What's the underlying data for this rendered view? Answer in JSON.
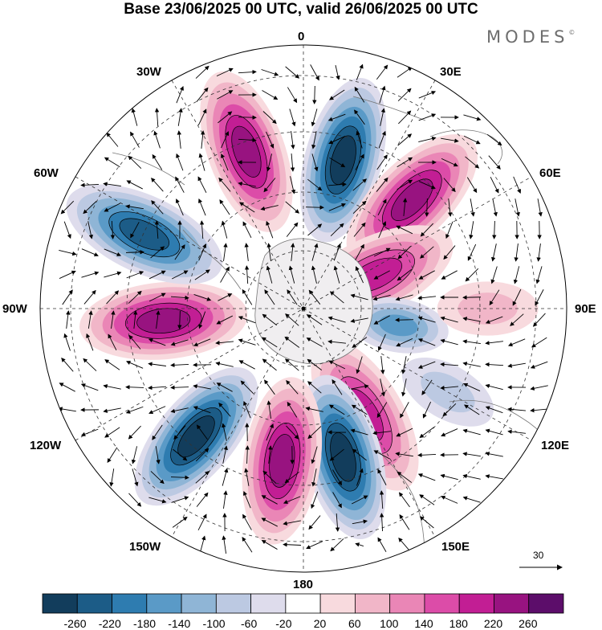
{
  "title": "Base 23/06/2025 00 UTC, valid 26/06/2025 00 UTC",
  "brand": {
    "name": "MODES",
    "mark": "©"
  },
  "longitude_labels": [
    "0",
    "30E",
    "60E",
    "90E",
    "120E",
    "150E",
    "180",
    "150W",
    "120W",
    "90W",
    "60W",
    "30W"
  ],
  "wind_reference": {
    "value": "30",
    "icon": "arrow-right-icon"
  },
  "colorbar": {
    "ticks": [
      "-260",
      "-220",
      "-180",
      "-140",
      "-100",
      "-60",
      "-20",
      "20",
      "60",
      "100",
      "140",
      "180",
      "220",
      "260"
    ],
    "colors": [
      "#123d5c",
      "#1c5c87",
      "#2e7cb0",
      "#5a9ac7",
      "#8fb5d6",
      "#bcc9e2",
      "#dedcec",
      "#ffffff",
      "#f8dade",
      "#f1b6c8",
      "#ea86b6",
      "#dc4ca8",
      "#c21e94",
      "#981380",
      "#5c0d6a"
    ]
  },
  "map": {
    "projection": "south polar stereographic",
    "features": [
      "geopotential height anomaly shading",
      "wind vectors",
      "coastlines",
      "graticule"
    ],
    "anomaly_centers": [
      {
        "sign": "positive",
        "lon": -20,
        "lat": -52,
        "strength": 230
      },
      {
        "sign": "negative",
        "lon": 15,
        "lat": -55,
        "strength": -270
      },
      {
        "sign": "positive",
        "lon": 45,
        "lat": -55,
        "strength": 240
      },
      {
        "sign": "positive",
        "lon": 65,
        "lat": -72,
        "strength": 200
      },
      {
        "sign": "negative",
        "lon": 100,
        "lat": -68,
        "strength": -140
      },
      {
        "sign": "positive",
        "lon": 150,
        "lat": -62,
        "strength": 190
      },
      {
        "sign": "negative",
        "lon": 165,
        "lat": -55,
        "strength": -260
      },
      {
        "sign": "positive",
        "lon": -172,
        "lat": -55,
        "strength": 230
      },
      {
        "sign": "negative",
        "lon": -140,
        "lat": -52,
        "strength": -270
      },
      {
        "sign": "positive",
        "lon": -95,
        "lat": -58,
        "strength": 250
      },
      {
        "sign": "negative",
        "lon": -65,
        "lat": -50,
        "strength": -230
      },
      {
        "sign": "positive",
        "lon": 90,
        "lat": -48,
        "strength": 60
      },
      {
        "sign": "negative",
        "lon": 120,
        "lat": -52,
        "strength": -60
      }
    ]
  }
}
